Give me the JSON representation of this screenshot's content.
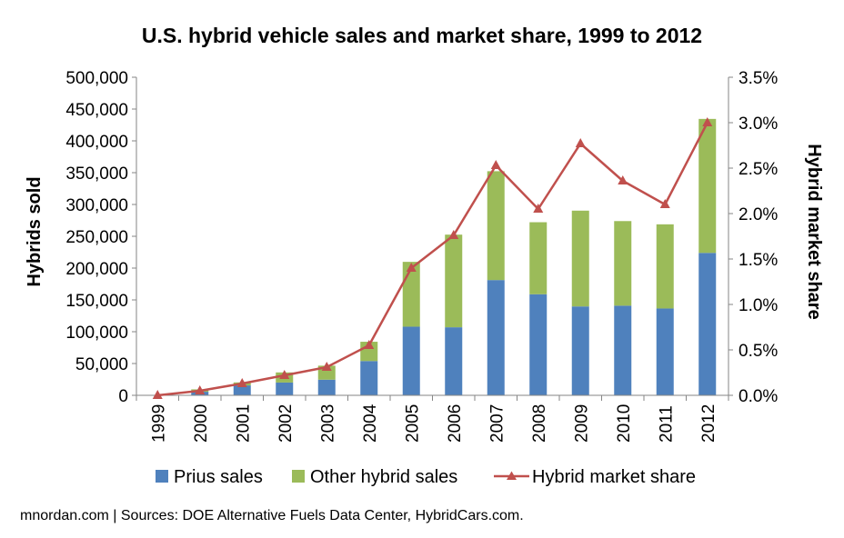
{
  "chart_data": {
    "type": "bar",
    "title": "U.S. hybrid vehicle sales and market share, 1999 to 2012",
    "categories": [
      "1999",
      "2000",
      "2001",
      "2002",
      "2003",
      "2004",
      "2005",
      "2006",
      "2007",
      "2008",
      "2009",
      "2010",
      "2011",
      "2012"
    ],
    "series": [
      {
        "name": "Prius sales",
        "type": "stacked-bar",
        "axis": "left",
        "values": [
          0,
          5600,
          15600,
          20100,
          24600,
          53900,
          107900,
          106970,
          181200,
          158900,
          139700,
          140900,
          136500,
          223900
        ]
      },
      {
        "name": "Other hybrid sales",
        "type": "stacked-bar",
        "axis": "left",
        "values": [
          17,
          3750,
          4700,
          15900,
          22000,
          30300,
          101900,
          145600,
          171100,
          113200,
          150600,
          133000,
          132300,
          210600
        ]
      },
      {
        "name": "Hybrid market share",
        "type": "line",
        "axis": "right",
        "values": [
          0.0,
          0.05,
          0.13,
          0.22,
          0.31,
          0.55,
          1.4,
          1.76,
          2.53,
          2.05,
          2.77,
          2.36,
          2.1,
          3.0
        ]
      }
    ],
    "ylabel": "Hybrids sold",
    "ylabel_right": "Hybrid market share",
    "ylim": [
      0,
      500000
    ],
    "ylim_right": [
      0,
      3.5
    ],
    "yticks": [
      "0",
      "50,000",
      "100,000",
      "150,000",
      "200,000",
      "250,000",
      "300,000",
      "350,000",
      "400,000",
      "450,000",
      "500,000"
    ],
    "yticks_right": [
      "0.0%",
      "0.5%",
      "1.0%",
      "1.5%",
      "2.0%",
      "2.5%",
      "3.0%",
      "3.5%"
    ],
    "grid": false,
    "legend_position": "bottom",
    "colors": {
      "prius": "#4F81BD",
      "other": "#9BBB59",
      "share": "#C0504D",
      "axis": "#868686"
    }
  },
  "source_note": "mnordan.com | Sources: DOE Alternative Fuels Data Center, HybridCars.com."
}
